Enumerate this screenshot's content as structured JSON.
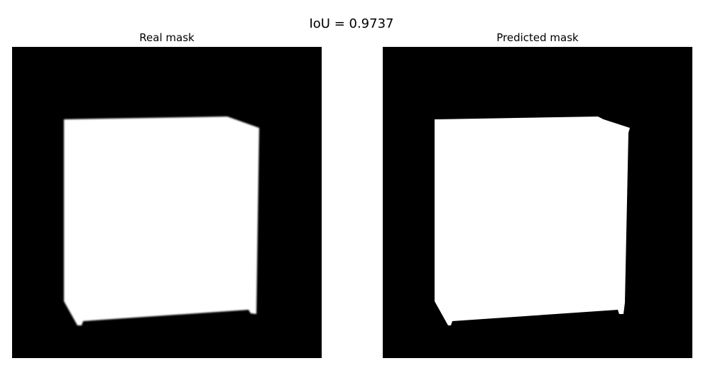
{
  "figure": {
    "title": "IoU = 0.9737"
  },
  "panels": [
    {
      "title": "Real mask",
      "background_color": "#000000",
      "mask_color": "#ffffff"
    },
    {
      "title": "Predicted mask",
      "background_color": "#000000",
      "mask_color": "#ffffff"
    }
  ]
}
